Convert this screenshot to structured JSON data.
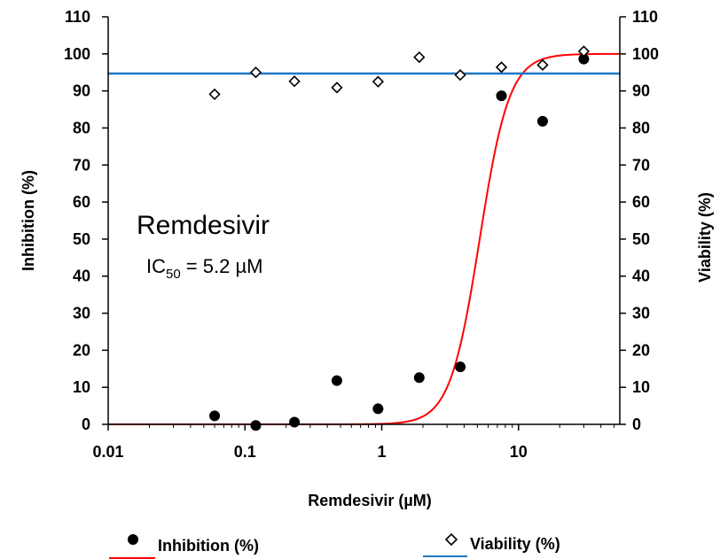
{
  "chart_data": {
    "type": "scatter",
    "x_scale": "log",
    "xlim": [
      0.01,
      55
    ],
    "ylim": [
      0,
      110
    ],
    "y2lim": [
      0,
      110
    ],
    "y_ticks": [
      0,
      10,
      20,
      30,
      40,
      50,
      60,
      70,
      80,
      90,
      100,
      110
    ],
    "x_ticks": [
      0.01,
      0.1,
      1,
      10
    ],
    "x_tick_labels": [
      "0.01",
      "0.1",
      "1",
      "10"
    ],
    "xlabel": "Remdesivir (µM)",
    "ylabel": "Inhibition (%)",
    "y2label": "Viability (%)",
    "annotation": {
      "drug": "Remdesivir",
      "ic50_prefix": "IC",
      "ic50_sub": "50",
      "ic50_value": " = 5.2 µM"
    },
    "series": [
      {
        "name": "Inhibition (%)",
        "marker": "filled-circle",
        "color": "#000000",
        "x": [
          0.06,
          0.12,
          0.23,
          0.47,
          0.94,
          1.88,
          3.75,
          7.5,
          15,
          30
        ],
        "y": [
          2.3,
          -0.3,
          0.6,
          11.8,
          4.2,
          12.6,
          15.5,
          88.7,
          81.8,
          98.6
        ]
      },
      {
        "name": "Viability (%)",
        "marker": "open-diamond",
        "color": "#000000",
        "x": [
          0.06,
          0.12,
          0.23,
          0.47,
          0.94,
          1.88,
          3.75,
          7.5,
          15,
          30
        ],
        "y": [
          89.1,
          95.0,
          92.6,
          90.9,
          92.5,
          99.1,
          94.3,
          96.4,
          97.0,
          100.7
        ]
      }
    ],
    "fit_curve": {
      "type": "hill",
      "ic50": 5.2,
      "hill_slope": 4,
      "bottom": 0,
      "top": 100,
      "color": "#ff0000"
    },
    "reference_line": {
      "y": 94.7,
      "color": "#1f77c4"
    },
    "legend": {
      "position": "bottom",
      "items": [
        {
          "label": "Inhibition (%)",
          "marker": "filled-circle",
          "line_color": "#ff0000"
        },
        {
          "label": "Viability (%)",
          "marker": "open-diamond",
          "line_color": "#1f77c4"
        }
      ]
    }
  }
}
